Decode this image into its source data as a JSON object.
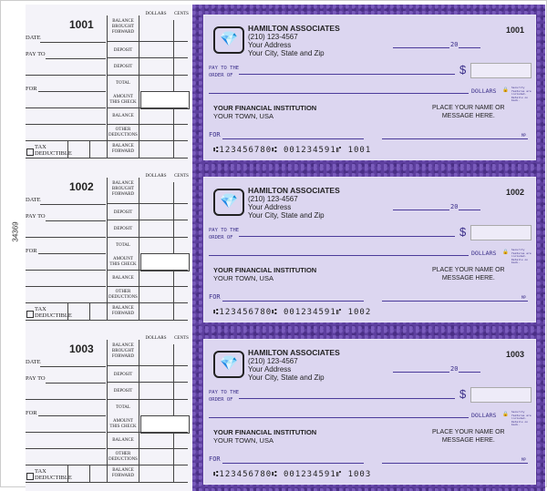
{
  "side_code": "34369",
  "stub_labels": {
    "date": "DATE",
    "pay_to": "PAY TO",
    "for": "FOR",
    "tax": "TAX DEDUCTIBLE",
    "dollars": "DOLLARS",
    "cents": "CENTS",
    "balance_brought_forward": "BALANCE BROUGHT FORWARD",
    "deposit": "DEPOSIT",
    "total": "TOTAL",
    "amount_this_check": "AMOUNT THIS CHECK",
    "balance": "BALANCE",
    "other_deductions": "OTHER DEDUCTIONS",
    "balance_forward": "BALANCE FORWARD"
  },
  "company": {
    "name": "HAMILTON ASSOCIATES",
    "phone": "(210) 123-4567",
    "address": "Your Address",
    "city": "Your City, State and Zip"
  },
  "check_labels": {
    "year_prefix": "20",
    "pay_to_line1": "PAY TO THE",
    "pay_to_line2": "ORDER OF",
    "currency": "$",
    "dollars": "DOLLARS",
    "security": "Security features are included. Details on back.",
    "for": "FOR",
    "mp": "MP"
  },
  "bank": {
    "name": "YOUR FINANCIAL INSTITUTION",
    "town": "YOUR TOWN, USA"
  },
  "message": {
    "line1": "PLACE YOUR NAME OR",
    "line2": "MESSAGE HERE."
  },
  "colors": {
    "border": "#5d3f9e",
    "face": "#dcd6f0",
    "ink": "#3b2f8a"
  },
  "checks": [
    {
      "number": "1001",
      "micr": "⑆123456780⑆  001234591⑈  1001"
    },
    {
      "number": "1002",
      "micr": "⑆123456780⑆  001234591⑈  1002"
    },
    {
      "number": "1003",
      "micr": "⑆123456780⑆  001234591⑈  1003"
    }
  ]
}
